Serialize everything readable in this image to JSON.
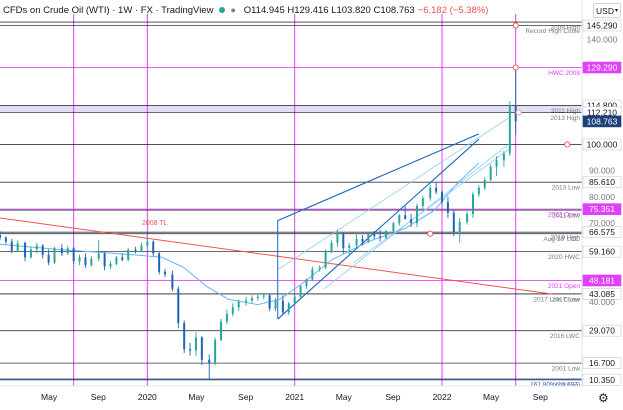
{
  "header": {
    "symbol": "CFDs on Crude Oil (WTI) · 1W · FX · TradingView",
    "ohlc": "O114.945 H129.416 L103.820 C108.763",
    "change": "−6.182 (−5.38%)",
    "currency": "USD",
    "eye_icon": "eye-icon",
    "settings_icon": "gear-icon"
  },
  "colors": {
    "up": "#26a69a",
    "down": "#1e63b8",
    "magenta": "#e040fb",
    "channel": "#1565c0",
    "red_trendline": "#ef5350",
    "ma": "#64b5f6",
    "price_badge": "#1c3f7a",
    "horizontal": "#131722"
  },
  "chart_data": {
    "type": "candlestick",
    "title": "CFDs on Crude Oil (WTI) · 1W · FX · TradingView",
    "yrange": [
      8,
      155
    ],
    "x_ticks": [
      {
        "label": "May",
        "t": 2019.333
      },
      {
        "label": "Sep",
        "t": 2019.667
      },
      {
        "label": "2020",
        "t": 2020.0
      },
      {
        "label": "May",
        "t": 2020.333
      },
      {
        "label": "Sep",
        "t": 2020.667
      },
      {
        "label": "2021",
        "t": 2021.0
      },
      {
        "label": "May",
        "t": 2021.333
      },
      {
        "label": "Sep",
        "t": 2021.667
      },
      {
        "label": "2022",
        "t": 2022.0
      },
      {
        "label": "May",
        "t": 2022.333
      },
      {
        "label": "Sep",
        "t": 2022.667
      }
    ],
    "y_ticks": [
      {
        "label": "145.290",
        "value": 145.29,
        "style": "badge-white"
      },
      {
        "label": "140.000",
        "value": 140.0,
        "style": "plain"
      },
      {
        "label": "129.290",
        "value": 129.29,
        "style": "badge-magenta"
      },
      {
        "label": "114.800",
        "value": 114.8,
        "style": "badge-white"
      },
      {
        "label": "112.210",
        "value": 112.21,
        "style": "badge-white"
      },
      {
        "label": "108.763",
        "value": 108.763,
        "style": "badge-current"
      },
      {
        "label": "100.000",
        "value": 100.0,
        "style": "badge-white"
      },
      {
        "label": "90.000",
        "value": 90.0,
        "style": "plain"
      },
      {
        "label": "85.610",
        "value": 85.61,
        "style": "badge-white"
      },
      {
        "label": "80.000",
        "value": 80.0,
        "style": "plain"
      },
      {
        "label": "75.351",
        "value": 75.351,
        "style": "badge-magenta"
      },
      {
        "label": "70.000",
        "value": 70.0,
        "style": "plain"
      },
      {
        "label": "66.575",
        "value": 66.575,
        "style": "badge-white"
      },
      {
        "label": "59.160",
        "value": 59.16,
        "style": "badge-white"
      },
      {
        "label": "48.181",
        "value": 48.181,
        "style": "badge-magenta"
      },
      {
        "label": "43.085",
        "value": 43.085,
        "style": "badge-white"
      },
      {
        "label": "40.000",
        "value": 40.0,
        "style": "plain"
      },
      {
        "label": "29.070",
        "value": 29.07,
        "style": "badge-white"
      },
      {
        "label": "16.700",
        "value": 16.7,
        "style": "badge-white"
      },
      {
        "label": "10.350",
        "value": 10.35,
        "style": "badge-white"
      }
    ],
    "levels": [
      {
        "label": "2008 High",
        "value": 146.6,
        "color": "#131722"
      },
      {
        "label": "Record High Close",
        "value": 145.29,
        "color": "#131722"
      },
      {
        "label": "HWC 2008",
        "value": 129.29,
        "color": "#e040fb"
      },
      {
        "label": "2011 High",
        "value": 114.8,
        "color": "#131722"
      },
      {
        "label": "2013 High",
        "value": 112.21,
        "color": "#131722"
      },
      {
        "label": "",
        "value": 100.0,
        "color": "#131722"
      },
      {
        "label": "2013 Low",
        "value": 85.61,
        "color": "#131722"
      },
      {
        "label": "2022 Open",
        "value": 75.351,
        "color": "#e040fb"
      },
      {
        "label": "2011 Low",
        "value": 75.0,
        "color": "#131722"
      },
      {
        "label": "2019 High",
        "value": 66.575,
        "color": "#131722"
      },
      {
        "label": "Aug 18' LCC",
        "value": 66.0,
        "color": "#131722"
      },
      {
        "label": "2020 HWC",
        "value": 59.16,
        "color": "#131722"
      },
      {
        "label": "2021 Open",
        "value": 48.181,
        "color": "#e040fb"
      },
      {
        "label": "2017 Low",
        "value": 43.085,
        "color": "#131722"
      },
      {
        "label": "2017 Low Close",
        "value": 43.085,
        "color": "#131722"
      },
      {
        "label": "2016 LWC",
        "value": 29.07,
        "color": "#131722"
      },
      {
        "label": "2001 Low",
        "value": 16.7,
        "color": "#131722"
      },
      {
        "label": "161.80%(10.697)",
        "value": 10.697,
        "color": "#1e63b8"
      },
      {
        "label": "1998 Low",
        "value": 10.35,
        "color": "#131722"
      }
    ],
    "vertical_markers": [
      2019.5,
      2020.0,
      2021.0,
      2022.0,
      2022.5
    ],
    "trendline_label": "2008 TL",
    "trendline": [
      [
        2019.0,
        72.0
      ],
      [
        2022.75,
        43.0
      ]
    ],
    "channel": {
      "top": [
        [
          2020.885,
          71.0
        ],
        [
          2022.25,
          104.0
        ]
      ],
      "bottom": [
        [
          2020.885,
          33.5
        ],
        [
          2022.25,
          102.0
        ]
      ],
      "inner": [
        [
          [
            2020.885,
            52.3
          ],
          [
            2022.45,
            110.0
          ]
        ],
        [
          [
            2021.2,
            45.0
          ],
          [
            2022.45,
            100.0
          ]
        ],
        [
          [
            2021.4,
            55.0
          ],
          [
            2022.45,
            98.0
          ]
        ]
      ]
    },
    "ma_line": [
      [
        2019.0,
        62
      ],
      [
        2019.4,
        60
      ],
      [
        2019.9,
        58
      ],
      [
        2020.1,
        57
      ],
      [
        2020.25,
        53
      ],
      [
        2020.4,
        46
      ],
      [
        2020.55,
        41
      ],
      [
        2020.75,
        39
      ],
      [
        2020.9,
        41
      ],
      [
        2021.05,
        47
      ],
      [
        2021.25,
        56
      ],
      [
        2021.5,
        63
      ],
      [
        2021.75,
        68
      ],
      [
        2021.95,
        75
      ],
      [
        2022.1,
        85
      ],
      [
        2022.25,
        93
      ]
    ],
    "series": [
      {
        "t": 2019.0,
        "open": 65.5,
        "high": 67.0,
        "low": 63.5,
        "close": 64.5
      },
      {
        "t": 2019.04,
        "open": 64.5,
        "high": 65.0,
        "low": 62.0,
        "close": 63.0
      },
      {
        "t": 2019.08,
        "open": 63.0,
        "high": 64.0,
        "low": 58.5,
        "close": 59.5
      },
      {
        "t": 2019.12,
        "open": 59.5,
        "high": 63.5,
        "low": 59.0,
        "close": 62.5
      },
      {
        "t": 2019.17,
        "open": 62.5,
        "high": 63.0,
        "low": 55.5,
        "close": 57.0
      },
      {
        "t": 2019.21,
        "open": 57.0,
        "high": 61.0,
        "low": 56.5,
        "close": 60.0
      },
      {
        "t": 2019.25,
        "open": 60.0,
        "high": 62.5,
        "low": 58.5,
        "close": 61.5
      },
      {
        "t": 2019.29,
        "open": 61.5,
        "high": 62.0,
        "low": 56.5,
        "close": 58.0
      },
      {
        "t": 2019.33,
        "open": 58.0,
        "high": 60.0,
        "low": 54.0,
        "close": 55.0
      },
      {
        "t": 2019.37,
        "open": 55.0,
        "high": 61.0,
        "low": 54.5,
        "close": 60.5
      },
      {
        "t": 2019.42,
        "open": 60.5,
        "high": 62.0,
        "low": 57.5,
        "close": 58.5
      },
      {
        "t": 2019.46,
        "open": 58.5,
        "high": 61.5,
        "low": 58.0,
        "close": 60.5
      },
      {
        "t": 2019.5,
        "open": 60.5,
        "high": 61.0,
        "low": 54.5,
        "close": 55.5
      },
      {
        "t": 2019.54,
        "open": 55.5,
        "high": 58.0,
        "low": 54.0,
        "close": 57.0
      },
      {
        "t": 2019.58,
        "open": 57.0,
        "high": 58.5,
        "low": 53.0,
        "close": 54.0
      },
      {
        "t": 2019.62,
        "open": 54.0,
        "high": 57.5,
        "low": 53.5,
        "close": 56.5
      },
      {
        "t": 2019.67,
        "open": 56.5,
        "high": 63.5,
        "low": 55.5,
        "close": 58.5
      },
      {
        "t": 2019.71,
        "open": 58.5,
        "high": 59.0,
        "low": 52.0,
        "close": 53.5
      },
      {
        "t": 2019.75,
        "open": 53.5,
        "high": 55.5,
        "low": 52.5,
        "close": 54.5
      },
      {
        "t": 2019.79,
        "open": 54.5,
        "high": 57.5,
        "low": 54.0,
        "close": 57.0
      },
      {
        "t": 2019.83,
        "open": 57.0,
        "high": 58.5,
        "low": 55.5,
        "close": 56.0
      },
      {
        "t": 2019.87,
        "open": 56.0,
        "high": 60.5,
        "low": 55.5,
        "close": 60.0
      },
      {
        "t": 2019.92,
        "open": 60.0,
        "high": 61.0,
        "low": 58.5,
        "close": 59.5
      },
      {
        "t": 2019.96,
        "open": 59.5,
        "high": 62.5,
        "low": 59.0,
        "close": 61.5
      },
      {
        "t": 2020.0,
        "open": 61.5,
        "high": 65.5,
        "low": 60.5,
        "close": 63.0
      },
      {
        "t": 2020.04,
        "open": 63.0,
        "high": 63.5,
        "low": 57.5,
        "close": 58.5
      },
      {
        "t": 2020.08,
        "open": 58.5,
        "high": 59.0,
        "low": 50.5,
        "close": 51.5
      },
      {
        "t": 2020.12,
        "open": 51.5,
        "high": 52.5,
        "low": 49.5,
        "close": 50.5
      },
      {
        "t": 2020.17,
        "open": 50.5,
        "high": 52.0,
        "low": 44.0,
        "close": 45.0
      },
      {
        "t": 2020.21,
        "open": 45.0,
        "high": 46.0,
        "low": 30.0,
        "close": 32.0
      },
      {
        "t": 2020.25,
        "open": 32.0,
        "high": 33.0,
        "low": 20.5,
        "close": 22.0
      },
      {
        "t": 2020.29,
        "open": 22.0,
        "high": 24.5,
        "low": 19.5,
        "close": 21.5
      },
      {
        "t": 2020.33,
        "open": 21.5,
        "high": 28.5,
        "low": 19.5,
        "close": 26.5
      },
      {
        "t": 2020.37,
        "open": 26.5,
        "high": 27.0,
        "low": 16.0,
        "close": 18.0
      },
      {
        "t": 2020.42,
        "open": 18.0,
        "high": 20.0,
        "low": 10.8,
        "close": 16.5
      },
      {
        "t": 2020.46,
        "open": 16.5,
        "high": 26.5,
        "low": 16.0,
        "close": 25.5
      },
      {
        "t": 2020.5,
        "open": 25.5,
        "high": 33.5,
        "low": 25.0,
        "close": 32.5
      },
      {
        "t": 2020.54,
        "open": 32.5,
        "high": 37.0,
        "low": 31.5,
        "close": 35.5
      },
      {
        "t": 2020.58,
        "open": 35.5,
        "high": 39.5,
        "low": 34.5,
        "close": 38.0
      },
      {
        "t": 2020.62,
        "open": 38.0,
        "high": 41.0,
        "low": 36.5,
        "close": 40.0
      },
      {
        "t": 2020.67,
        "open": 40.0,
        "high": 42.0,
        "low": 38.5,
        "close": 40.5
      },
      {
        "t": 2020.71,
        "open": 40.5,
        "high": 42.5,
        "low": 39.5,
        "close": 41.5
      },
      {
        "t": 2020.75,
        "open": 41.5,
        "high": 43.0,
        "low": 40.5,
        "close": 42.0
      },
      {
        "t": 2020.79,
        "open": 42.0,
        "high": 43.5,
        "low": 41.0,
        "close": 42.5
      },
      {
        "t": 2020.83,
        "open": 42.5,
        "high": 43.0,
        "low": 36.5,
        "close": 37.5
      },
      {
        "t": 2020.87,
        "open": 37.5,
        "high": 41.5,
        "low": 36.5,
        "close": 40.5
      },
      {
        "t": 2020.92,
        "open": 40.5,
        "high": 42.5,
        "low": 35.0,
        "close": 36.0
      },
      {
        "t": 2020.96,
        "open": 36.0,
        "high": 40.0,
        "low": 35.0,
        "close": 39.5
      },
      {
        "t": 2021.0,
        "open": 39.5,
        "high": 42.5,
        "low": 39.0,
        "close": 42.0
      },
      {
        "t": 2021.04,
        "open": 42.0,
        "high": 46.5,
        "low": 41.5,
        "close": 46.0
      },
      {
        "t": 2021.08,
        "open": 46.0,
        "high": 49.0,
        "low": 45.0,
        "close": 48.5
      },
      {
        "t": 2021.12,
        "open": 48.5,
        "high": 53.5,
        "low": 48.0,
        "close": 52.5
      },
      {
        "t": 2021.17,
        "open": 52.5,
        "high": 54.0,
        "low": 51.5,
        "close": 53.0
      },
      {
        "t": 2021.21,
        "open": 53.0,
        "high": 60.0,
        "low": 52.5,
        "close": 59.0
      },
      {
        "t": 2021.25,
        "open": 59.0,
        "high": 63.5,
        "low": 58.5,
        "close": 62.5
      },
      {
        "t": 2021.29,
        "open": 62.5,
        "high": 67.5,
        "low": 61.0,
        "close": 66.0
      },
      {
        "t": 2021.33,
        "open": 66.0,
        "high": 66.5,
        "low": 58.5,
        "close": 60.5
      },
      {
        "t": 2021.37,
        "open": 60.5,
        "high": 62.5,
        "low": 57.5,
        "close": 61.5
      },
      {
        "t": 2021.42,
        "open": 61.5,
        "high": 66.0,
        "low": 60.5,
        "close": 64.0
      },
      {
        "t": 2021.46,
        "open": 64.0,
        "high": 65.5,
        "low": 61.5,
        "close": 63.0
      },
      {
        "t": 2021.5,
        "open": 63.0,
        "high": 66.5,
        "low": 62.5,
        "close": 66.0
      },
      {
        "t": 2021.54,
        "open": 66.0,
        "high": 67.0,
        "low": 64.0,
        "close": 65.0
      },
      {
        "t": 2021.58,
        "open": 65.0,
        "high": 67.5,
        "low": 63.0,
        "close": 64.5
      },
      {
        "t": 2021.62,
        "open": 64.5,
        "high": 67.5,
        "low": 64.0,
        "close": 67.0
      },
      {
        "t": 2021.67,
        "open": 67.0,
        "high": 70.5,
        "low": 66.0,
        "close": 70.0
      },
      {
        "t": 2021.71,
        "open": 70.0,
        "high": 73.5,
        "low": 69.0,
        "close": 73.0
      },
      {
        "t": 2021.75,
        "open": 73.0,
        "high": 76.5,
        "low": 72.0,
        "close": 71.5
      },
      {
        "t": 2021.79,
        "open": 71.5,
        "high": 73.5,
        "low": 68.5,
        "close": 70.0
      },
      {
        "t": 2021.83,
        "open": 70.0,
        "high": 77.5,
        "low": 68.5,
        "close": 76.5
      },
      {
        "t": 2021.87,
        "open": 76.5,
        "high": 80.5,
        "low": 75.5,
        "close": 79.5
      },
      {
        "t": 2021.92,
        "open": 79.5,
        "high": 84.5,
        "low": 78.5,
        "close": 83.5
      },
      {
        "t": 2021.96,
        "open": 83.5,
        "high": 85.5,
        "low": 81.0,
        "close": 82.0
      },
      {
        "t": 2022.0,
        "open": 82.0,
        "high": 82.5,
        "low": 77.0,
        "close": 78.0
      },
      {
        "t": 2022.04,
        "open": 78.0,
        "high": 80.0,
        "low": 72.0,
        "close": 74.0
      },
      {
        "t": 2022.08,
        "open": 74.0,
        "high": 75.0,
        "low": 65.0,
        "close": 66.5
      },
      {
        "t": 2022.12,
        "open": 66.5,
        "high": 72.0,
        "low": 62.5,
        "close": 70.5
      },
      {
        "t": 2022.17,
        "open": 70.5,
        "high": 74.5,
        "low": 69.5,
        "close": 73.5
      },
      {
        "t": 2022.21,
        "open": 73.5,
        "high": 82.0,
        "low": 72.0,
        "close": 81.0
      },
      {
        "t": 2022.25,
        "open": 81.0,
        "high": 84.5,
        "low": 80.0,
        "close": 83.5
      },
      {
        "t": 2022.29,
        "open": 83.5,
        "high": 87.5,
        "low": 82.5,
        "close": 86.5
      },
      {
        "t": 2022.33,
        "open": 86.5,
        "high": 92.5,
        "low": 86.0,
        "close": 91.5
      },
      {
        "t": 2022.37,
        "open": 91.5,
        "high": 95.5,
        "low": 88.0,
        "close": 94.0
      },
      {
        "t": 2022.42,
        "open": 94.0,
        "high": 97.5,
        "low": 91.5,
        "close": 96.5
      },
      {
        "t": 2022.46,
        "open": 96.5,
        "high": 116.5,
        "low": 95.5,
        "close": 115.0
      },
      {
        "t": 2022.5,
        "open": 114.945,
        "high": 129.416,
        "low": 103.82,
        "close": 108.763
      }
    ]
  }
}
